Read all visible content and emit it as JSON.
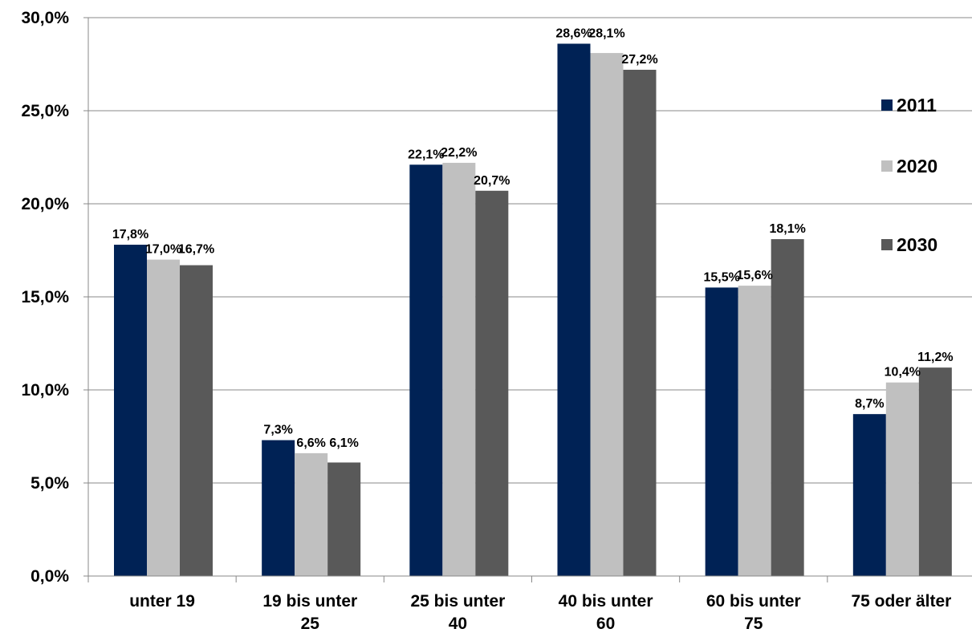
{
  "chart_data": {
    "type": "bar",
    "categories": [
      [
        "unter 19"
      ],
      [
        "19 bis unter",
        "25"
      ],
      [
        "25 bis unter",
        "40"
      ],
      [
        "40 bis unter",
        "60"
      ],
      [
        "60 bis unter",
        "75"
      ],
      [
        "75 oder älter"
      ]
    ],
    "series": [
      {
        "name": "2011",
        "color": "#002255",
        "values": [
          17.8,
          7.3,
          22.1,
          28.6,
          15.5,
          8.7
        ]
      },
      {
        "name": "2020",
        "color": "#c0c0c0",
        "values": [
          17.0,
          6.6,
          22.2,
          28.1,
          15.6,
          10.4
        ]
      },
      {
        "name": "2030",
        "color": "#595959",
        "values": [
          16.7,
          6.1,
          20.7,
          27.2,
          18.1,
          11.2
        ]
      }
    ],
    "data_labels": [
      [
        "17,8%",
        "7,3%",
        "22,1%",
        "28,6%",
        "15,5%",
        "8,7%"
      ],
      [
        "17,0%",
        "6,6%",
        "22,2%",
        "28,1%",
        "15,6%",
        "10,4%"
      ],
      [
        "16,7%",
        "6,1%",
        "20,7%",
        "27,2%",
        "18,1%",
        "11,2%"
      ]
    ],
    "y_ticks": [
      {
        "value": 0,
        "label": "0,0%"
      },
      {
        "value": 5,
        "label": "5,0%"
      },
      {
        "value": 10,
        "label": "10,0%"
      },
      {
        "value": 15,
        "label": "15,0%"
      },
      {
        "value": 20,
        "label": "20,0%"
      },
      {
        "value": 25,
        "label": "25,0%"
      },
      {
        "value": 30,
        "label": "30,0%"
      }
    ],
    "ylim": [
      0,
      30
    ],
    "grid": true,
    "legend_position": "right",
    "title": "",
    "xlabel": "",
    "ylabel": ""
  }
}
